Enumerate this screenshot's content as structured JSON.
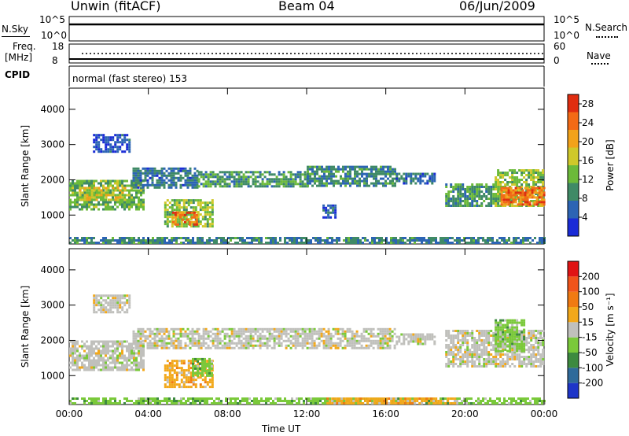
{
  "header": {
    "station": "Unwin (fitACF)",
    "beam": "Beam 04",
    "date": "06/Jun/2009"
  },
  "panels": {
    "nsky_label": "N.Sky",
    "nsky_ticks": [
      "10^5",
      "10^0"
    ],
    "nsearch_label": "N.Search",
    "nsearch_ticks": [
      "10^5",
      "10^0"
    ],
    "freq_label": "Freq.",
    "freq_unit": "[MHz]",
    "freq_ticks": [
      "18",
      "8"
    ],
    "nave_label": "Nave",
    "nave_ticks": [
      "60",
      "0"
    ],
    "cpid_label": "CPID",
    "cpid_text": "normal (fast stereo) 153"
  },
  "chart_data": [
    {
      "type": "heatmap",
      "name": "power",
      "ylabel": "Slant Range [km]",
      "xlabel": "",
      "ylim": [
        180,
        4600
      ],
      "xlim": [
        0,
        24
      ],
      "yticks": [
        "1000",
        "2000",
        "3000",
        "4000"
      ],
      "xticks": [
        "00:00",
        "04:00",
        "08:00",
        "12:00",
        "16:00",
        "20:00",
        "00:00"
      ],
      "colorbar": {
        "label": "Power [dB]",
        "ticks": [
          "4",
          "8",
          "12",
          "16",
          "20",
          "24",
          "28"
        ],
        "range": [
          0,
          30
        ],
        "colors": [
          "#1a2bd6",
          "#2c64b4",
          "#3f8a66",
          "#6cba3a",
          "#cfc82a",
          "#f2a21a",
          "#f36a15",
          "#e02d10"
        ]
      },
      "regions": [
        {
          "t0": 0.0,
          "t1": 3.8,
          "r0": 1150,
          "r1": 2000,
          "level": 12
        },
        {
          "t0": 0.5,
          "t1": 2.8,
          "r0": 1400,
          "r1": 1800,
          "level": 17
        },
        {
          "t0": 4.8,
          "t1": 7.2,
          "r0": 650,
          "r1": 1450,
          "level": 14
        },
        {
          "t0": 5.2,
          "t1": 6.4,
          "r0": 700,
          "r1": 1100,
          "level": 24
        },
        {
          "t0": 3.2,
          "t1": 6.5,
          "r0": 1750,
          "r1": 2350,
          "level": 7
        },
        {
          "t0": 6.5,
          "t1": 12.0,
          "r0": 1800,
          "r1": 2250,
          "level": 10
        },
        {
          "t0": 12.0,
          "t1": 16.5,
          "r0": 1850,
          "r1": 2400,
          "level": 9
        },
        {
          "t0": 16.5,
          "t1": 18.5,
          "r0": 1900,
          "r1": 2200,
          "level": 7
        },
        {
          "t0": 19.0,
          "t1": 21.5,
          "r0": 1250,
          "r1": 1900,
          "level": 10
        },
        {
          "t0": 21.5,
          "t1": 24.0,
          "r0": 1250,
          "r1": 2300,
          "level": 14
        },
        {
          "t0": 21.8,
          "t1": 24.0,
          "r0": 1300,
          "r1": 1800,
          "level": 24
        },
        {
          "t0": 0.0,
          "t1": 24.0,
          "r0": 200,
          "r1": 380,
          "level": 8
        },
        {
          "t0": 1.2,
          "t1": 3.0,
          "r0": 2800,
          "r1": 3300,
          "level": 4
        },
        {
          "t0": 12.8,
          "t1": 13.4,
          "r0": 950,
          "r1": 1300,
          "level": 5
        }
      ]
    },
    {
      "type": "heatmap",
      "name": "velocity",
      "ylabel": "Slant Range [km]",
      "xlabel": "Time UT",
      "ylim": [
        180,
        4600
      ],
      "xlim": [
        0,
        24
      ],
      "yticks": [
        "1000",
        "2000",
        "3000",
        "4000"
      ],
      "xticks": [
        "00:00",
        "04:00",
        "08:00",
        "12:00",
        "16:00",
        "20:00",
        "00:00"
      ],
      "colorbar": {
        "label": "Velocity [m s⁻¹]",
        "ticks": [
          "200",
          "100",
          "50",
          "15",
          "-15",
          "-50",
          "-100",
          "-200"
        ],
        "colors": [
          "#1e35c8",
          "#2f6a9a",
          "#3d8a3f",
          "#7ac93a",
          "#c0c0bc",
          "#f2a81a",
          "#f07a12",
          "#f0541a",
          "#e01414"
        ]
      },
      "regions": [
        {
          "t0": 0.0,
          "t1": 3.8,
          "r0": 1150,
          "r1": 2000,
          "class": 4
        },
        {
          "t0": 4.8,
          "t1": 7.2,
          "r0": 650,
          "r1": 1450,
          "class": 5
        },
        {
          "t0": 6.2,
          "t1": 7.2,
          "r0": 1000,
          "r1": 1500,
          "class": 3
        },
        {
          "t0": 3.2,
          "t1": 6.5,
          "r0": 1750,
          "r1": 2350,
          "class": 4
        },
        {
          "t0": 6.5,
          "t1": 16.5,
          "r0": 1800,
          "r1": 2350,
          "class": 4
        },
        {
          "t0": 16.5,
          "t1": 18.5,
          "r0": 1900,
          "r1": 2200,
          "class": 4
        },
        {
          "t0": 19.0,
          "t1": 24.0,
          "r0": 1250,
          "r1": 2300,
          "class": 4
        },
        {
          "t0": 21.5,
          "t1": 23.0,
          "r0": 1700,
          "r1": 2600,
          "class": 3
        },
        {
          "t0": 0.0,
          "t1": 24.0,
          "r0": 200,
          "r1": 380,
          "class": 3
        },
        {
          "t0": 13.0,
          "t1": 19.5,
          "r0": 200,
          "r1": 380,
          "class": 5
        },
        {
          "t0": 1.2,
          "t1": 3.0,
          "r0": 2800,
          "r1": 3300,
          "class": 4
        }
      ]
    }
  ]
}
